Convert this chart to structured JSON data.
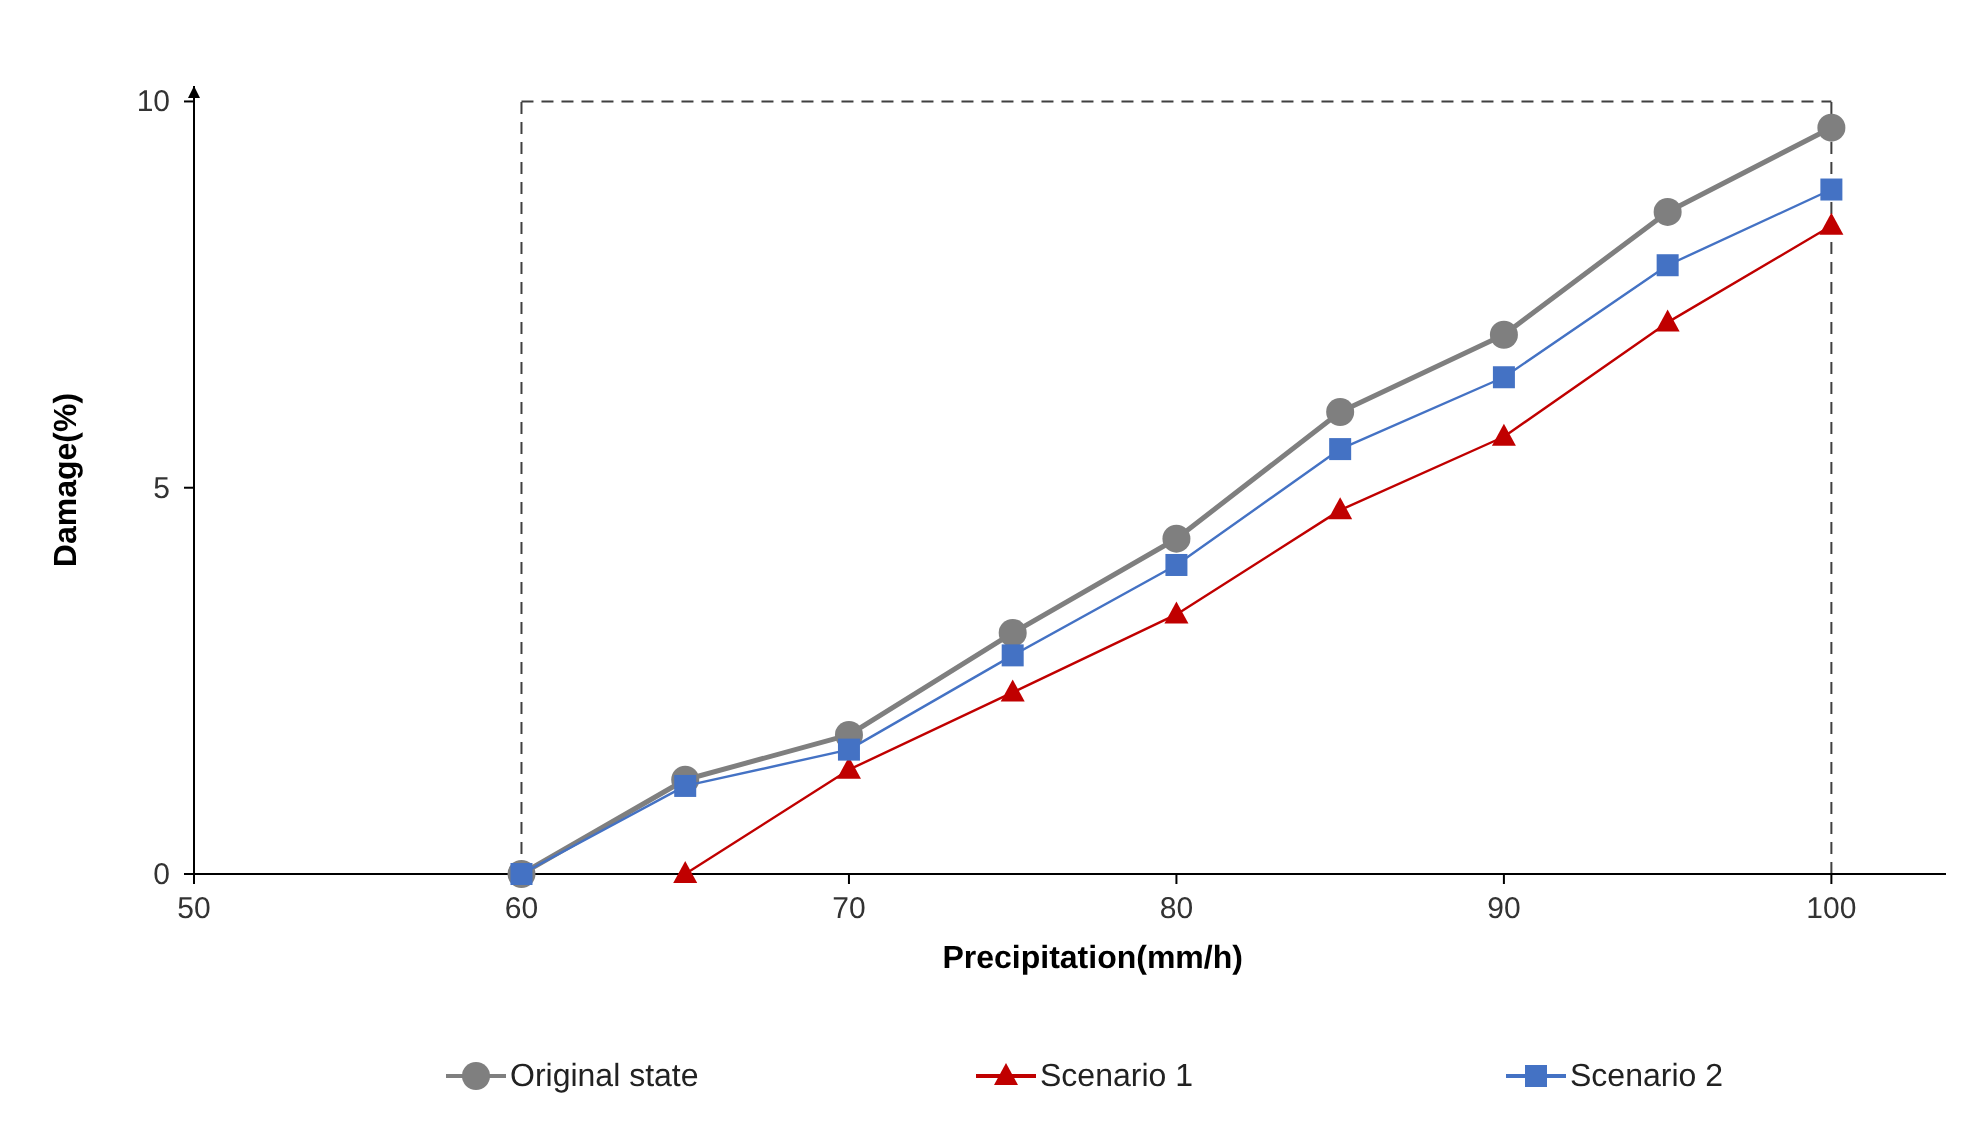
{
  "chart_data": {
    "type": "line",
    "xlabel": "Precipitation(mm/h)",
    "ylabel": "Damage(%)",
    "x": [
      60,
      65,
      70,
      75,
      80,
      85,
      90,
      95,
      100
    ],
    "xlim": [
      50,
      103.5
    ],
    "xticks": [
      50,
      60,
      70,
      80,
      90,
      100
    ],
    "ylim": [
      0,
      10.2
    ],
    "yticks": [
      0,
      5,
      10
    ],
    "grid": false,
    "legend": "bottom",
    "ref_lines": [
      {
        "axis": "x",
        "value": 60,
        "line_style": "dashed",
        "color": "#404040"
      },
      {
        "axis": "x",
        "value": 100,
        "line_style": "dashed",
        "color": "#404040"
      },
      {
        "axis": "y",
        "value": 10,
        "line_style": "dashed",
        "color": "#404040"
      }
    ],
    "series": [
      {
        "name": "Original state",
        "color": "#7f7f7f",
        "marker": "circle",
        "values": [
          0,
          1.22,
          1.8,
          3.12,
          4.34,
          5.98,
          6.98,
          8.57,
          9.66
        ]
      },
      {
        "name": "Scenario 1",
        "color": "#c00000",
        "marker": "triangle",
        "values": [
          null,
          0,
          1.35,
          2.35,
          3.36,
          4.71,
          5.66,
          7.14,
          8.39
        ]
      },
      {
        "name": "Scenario 2",
        "color": "#4472c4",
        "marker": "square",
        "values": [
          0,
          1.14,
          1.61,
          2.83,
          4.0,
          5.5,
          6.43,
          7.88,
          8.86
        ]
      }
    ]
  }
}
